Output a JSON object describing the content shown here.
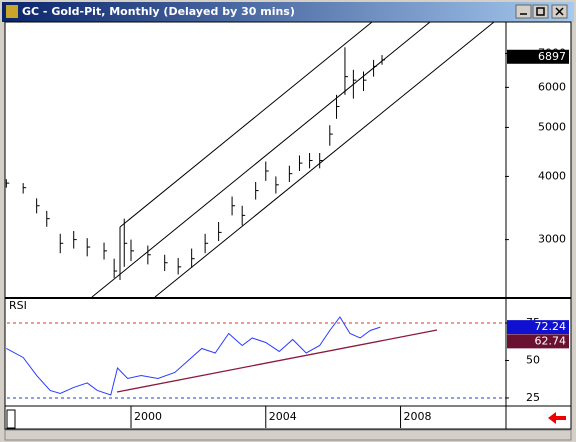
{
  "window": {
    "title": "GC - Gold-Pit, Monthly (Delayed by 30 mins)"
  },
  "chart_data": [
    {
      "type": "ohlc",
      "log_scale": true,
      "color": "#000000",
      "x": [
        1996.3,
        1996.8,
        1997.2,
        1997.5,
        1997.9,
        1998.3,
        1998.7,
        1999.2,
        1999.5,
        1999.8,
        2000.0,
        2000.5,
        2001.0,
        2001.4,
        2001.8,
        2002.2,
        2002.6,
        2003.0,
        2003.3,
        2003.7,
        2004.0,
        2004.3,
        2004.7,
        2005.0,
        2005.3,
        2005.6,
        2005.9,
        2006.1,
        2006.35,
        2006.6,
        2006.9,
        2007.2,
        2007.45
      ],
      "high": [
        3950,
        3880,
        3620,
        3420,
        3080,
        3120,
        3020,
        2960,
        2750,
        3300,
        3000,
        2920,
        2800,
        2760,
        2880,
        3080,
        3250,
        3650,
        3500,
        3900,
        4280,
        4000,
        4200,
        4400,
        4450,
        4450,
        5050,
        5800,
        7200,
        6500,
        6450,
        6800,
        6950
      ],
      "low": [
        3800,
        3700,
        3380,
        3180,
        2820,
        2880,
        2780,
        2740,
        2520,
        2650,
        2720,
        2680,
        2600,
        2560,
        2640,
        2820,
        2980,
        3350,
        3200,
        3600,
        3920,
        3700,
        3900,
        4100,
        4150,
        4150,
        4600,
        5200,
        5800,
        5700,
        5900,
        6300,
        6650
      ],
      "values": [
        3880,
        3800,
        3500,
        3300,
        2950,
        3000,
        2900,
        2850,
        2600,
        2950,
        2850,
        2800,
        2700,
        2650,
        2750,
        2950,
        3100,
        3500,
        3350,
        3750,
        4100,
        3850,
        4050,
        4250,
        4300,
        4300,
        4850,
        5500,
        6300,
        6200,
        6200,
        6600,
        6800
      ],
      "xlim": [
        1996.32,
        2011.1
      ],
      "ylim": [
        2310,
        8080
      ],
      "yticks": [
        3000,
        4000,
        5000,
        6000,
        7000
      ],
      "last": 6897
    },
    {
      "type": "line",
      "title": "RSI",
      "color": "#2a3cff",
      "x": [
        1996.3,
        1996.8,
        1997.2,
        1997.6,
        1997.9,
        1998.3,
        1998.7,
        1999.0,
        1999.4,
        1999.6,
        1999.9,
        2000.3,
        2000.8,
        2001.3,
        2001.7,
        2002.1,
        2002.5,
        2002.9,
        2003.3,
        2003.6,
        2004.0,
        2004.4,
        2004.8,
        2005.2,
        2005.6,
        2005.9,
        2006.2,
        2006.5,
        2006.8,
        2007.1,
        2007.4
      ],
      "values": [
        58,
        52,
        40,
        30,
        28,
        32,
        35,
        30,
        27,
        45,
        38,
        40,
        38,
        42,
        50,
        58,
        55,
        68,
        60,
        65,
        62,
        56,
        64,
        55,
        60,
        70,
        79,
        68,
        65,
        70,
        72.24
      ],
      "xlim": [
        1996.32,
        2011.1
      ],
      "ylim": [
        20.3,
        91
      ],
      "yticks": [
        25,
        50,
        75
      ],
      "levels": [
        75,
        25
      ],
      "trend_value": 62.74,
      "xticks": [
        2000,
        2004,
        2008
      ]
    }
  ]
}
